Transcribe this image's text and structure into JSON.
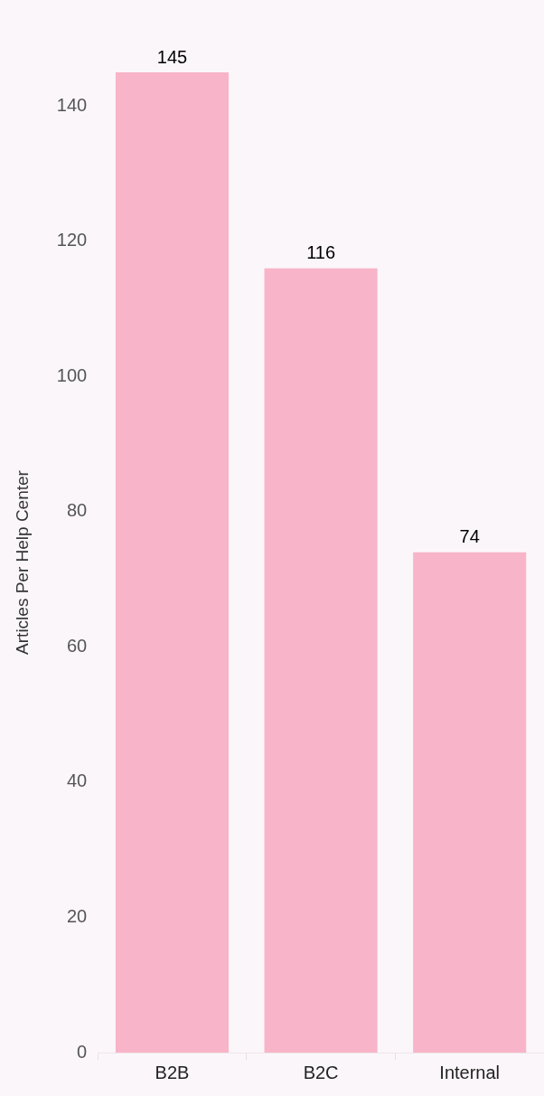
{
  "chart_data": {
    "type": "bar",
    "ylabel": "Articles Per Help Center",
    "categories": [
      "B2B",
      "B2C",
      "Internal"
    ],
    "values": [
      145,
      116,
      74
    ],
    "color": "#f8b4c8",
    "ylim": [
      0,
      145
    ],
    "yticks": [
      0,
      20,
      40,
      60,
      80,
      100,
      120,
      140
    ],
    "grid": false,
    "data_labels": true,
    "legend": false
  }
}
